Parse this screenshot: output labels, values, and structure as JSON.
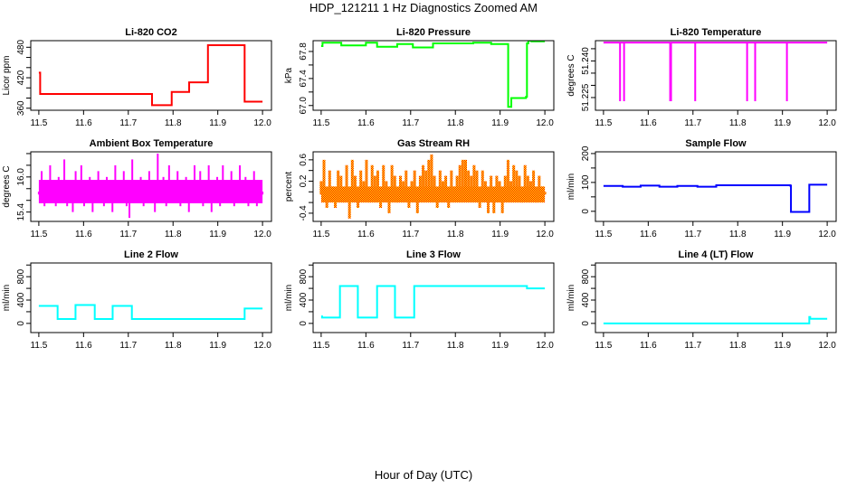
{
  "chart_data": {
    "title": "HDP_121211  1 Hz Diagnostics Zoomed AM",
    "xlabel": "Hour of Day (UTC)",
    "xlim": [
      11.482,
      12.02
    ],
    "xticks": [
      11.5,
      11.6,
      11.7,
      11.8,
      11.9,
      12.0
    ],
    "xtick_labels": [
      "11.5",
      "11.6",
      "11.7",
      "11.8",
      "11.9",
      "12.0"
    ],
    "panels": [
      {
        "title": "Li-820 CO2",
        "ylabel": "Licor ppm",
        "type": "line",
        "ylim": [
          356,
          493
        ],
        "yticks": [
          360,
          380,
          400,
          420,
          440,
          460,
          480
        ],
        "ytick_labels": {
          "360": "360",
          "420": "420",
          "480": "480"
        },
        "color": "#ff0000",
        "steps": [
          [
            11.5,
            430
          ],
          [
            11.503,
            388
          ],
          [
            11.753,
            366
          ],
          [
            11.797,
            392
          ],
          [
            11.836,
            411
          ],
          [
            11.878,
            484
          ],
          [
            11.96,
            373
          ],
          [
            12.0,
            373
          ]
        ]
      },
      {
        "title": "Li-820 Pressure",
        "ylabel": "kPa",
        "type": "line",
        "ylim": [
          66.93,
          67.96
        ],
        "yticks": [
          67.0,
          67.2,
          67.4,
          67.6,
          67.8
        ],
        "ytick_labels": {
          "67": "67.0",
          "67.4": "67.4",
          "67.8": "67.8"
        },
        "color": "#00ff00",
        "steps": [
          [
            11.5,
            67.88
          ],
          [
            11.503,
            67.93
          ],
          [
            11.545,
            67.89
          ],
          [
            11.6,
            67.93
          ],
          [
            11.625,
            67.87
          ],
          [
            11.67,
            67.91
          ],
          [
            11.705,
            67.86
          ],
          [
            11.75,
            67.92
          ],
          [
            11.84,
            67.93
          ],
          [
            11.88,
            67.91
          ],
          [
            11.918,
            66.98
          ],
          [
            11.925,
            67.11
          ],
          [
            11.958,
            67.13
          ],
          [
            11.96,
            67.92
          ],
          [
            11.963,
            67.96
          ],
          [
            11.97,
            67.95
          ],
          [
            12.0,
            67.95
          ]
        ]
      },
      {
        "title": "Li-820 Temperature",
        "ylabel": "degrees C",
        "type": "spikes",
        "ylim": [
          51.2198,
          51.2483
        ],
        "yticks": [
          51.225,
          51.23,
          51.235,
          51.24,
          51.245
        ],
        "ytick_labels": {
          "51.225": "51.225",
          "51.24": "51.240"
        },
        "color": "#ff00ff",
        "baseline": 51.2475,
        "spike_min": 51.2235,
        "spikes": [
          11.537,
          11.546,
          11.649,
          11.651,
          11.705,
          11.821,
          11.839,
          11.91
        ]
      },
      {
        "title": "Ambient Box Temperature",
        "ylabel": "degrees C",
        "type": "noise",
        "ylim": [
          15.24,
          16.43
        ],
        "yticks": [
          15.4,
          15.6,
          15.8,
          16.0,
          16.2,
          16.4
        ],
        "ytick_labels": {
          "15.4": "15.4",
          "16": "16.0"
        },
        "color": "#ff00ff",
        "core_range": [
          15.55,
          15.95
        ],
        "values": [
          15.7,
          16.1,
          15.5,
          15.9,
          16.2,
          15.6,
          15.5,
          16.0,
          15.8,
          16.3,
          15.5,
          15.9,
          15.4,
          16.1,
          15.7,
          16.2,
          15.5,
          15.8,
          16.0,
          15.4,
          15.9,
          16.1,
          15.6,
          15.5,
          16.0,
          15.8,
          15.4,
          16.2,
          15.7,
          15.9,
          16.1,
          15.5,
          15.3,
          16.3,
          15.6,
          15.9,
          16.0,
          15.5,
          15.8,
          16.1,
          15.6,
          15.4,
          16.4,
          15.7,
          16.0,
          15.5,
          16.2,
          15.8,
          15.6,
          16.1,
          15.5,
          15.9,
          16.0,
          15.4,
          15.8,
          16.2,
          15.6,
          16.1,
          15.5,
          15.9,
          16.2,
          15.4,
          15.8,
          16.0,
          15.5,
          16.2,
          15.7,
          15.9,
          16.1,
          15.5,
          15.8,
          16.2,
          15.6,
          16.0,
          15.5,
          15.9,
          16.1,
          15.5,
          15.8,
          15.7
        ]
      },
      {
        "title": "Gas Stream RH",
        "ylabel": "percent",
        "type": "noise",
        "ylim": [
          -0.554,
          0.75
        ],
        "yticks": [
          -0.4,
          -0.2,
          0.0,
          0.2,
          0.4,
          0.6
        ],
        "ytick_labels": {
          "-0.4": "-0.4",
          "0.2": "0.2",
          "0.6": "0.6"
        },
        "color": "#ff8800",
        "color2": "#ffff00",
        "core_range": [
          -0.2,
          0.1
        ],
        "values": [
          0.2,
          0.6,
          -0.3,
          0.4,
          0.1,
          -0.3,
          0.4,
          0.3,
          -0.2,
          0.5,
          -0.5,
          0.6,
          0.3,
          -0.3,
          0.4,
          0.2,
          0.6,
          -0.2,
          0.5,
          0.3,
          0.4,
          -0.3,
          0.5,
          0.2,
          -0.4,
          0.5,
          0.3,
          -0.2,
          0.3,
          0.2,
          0.4,
          -0.3,
          0.2,
          0.4,
          -0.4,
          0.3,
          0.5,
          0.4,
          0.6,
          0.7,
          0.3,
          -0.3,
          0.4,
          0.2,
          0.3,
          -0.3,
          0.4,
          0.1,
          0.3,
          0.5,
          0.6,
          0.6,
          0.4,
          0.3,
          0.5,
          0.4,
          -0.3,
          0.4,
          0.2,
          -0.4,
          0.3,
          -0.4,
          0.3,
          0.2,
          -0.4,
          0.3,
          0.6,
          0.2,
          0.5,
          0.4,
          0.3,
          -0.2,
          0.5,
          0.3,
          0.2,
          0.4,
          -0.2,
          0.3,
          0.1,
          0.0
        ]
      },
      {
        "title": "Sample Flow",
        "ylabel": "ml/min",
        "type": "line",
        "ylim": [
          -35,
          206
        ],
        "yticks": [
          0,
          50,
          100,
          150,
          200
        ],
        "ytick_labels": {
          "0": "0",
          "100": "100",
          "200": "200"
        },
        "color": "#0000ff",
        "steps": [
          [
            11.5,
            88
          ],
          [
            11.543,
            85
          ],
          [
            11.583,
            89
          ],
          [
            11.625,
            85
          ],
          [
            11.665,
            88
          ],
          [
            11.71,
            85
          ],
          [
            11.752,
            90
          ],
          [
            11.918,
            88
          ],
          [
            11.919,
            -2
          ],
          [
            11.96,
            92
          ],
          [
            12.0,
            92
          ]
        ]
      },
      {
        "title": "Line 2 Flow",
        "ylabel": "ml/min",
        "type": "line",
        "ylim": [
          -157,
          1035
        ],
        "yticks": [
          0,
          200,
          400,
          600,
          800,
          1000
        ],
        "ytick_labels": {
          "0": "0",
          "400": "400",
          "800": "800"
        },
        "color": "#00ffff",
        "steps": [
          [
            11.5,
            300
          ],
          [
            11.542,
            75
          ],
          [
            11.582,
            315
          ],
          [
            11.625,
            75
          ],
          [
            11.665,
            300
          ],
          [
            11.708,
            75
          ],
          [
            11.96,
            255
          ],
          [
            12.0,
            255
          ]
        ]
      },
      {
        "title": "Line 3 Flow",
        "ylabel": "ml/min",
        "type": "line",
        "ylim": [
          -157,
          1035
        ],
        "yticks": [
          0,
          200,
          400,
          600,
          800,
          1000
        ],
        "ytick_labels": {
          "0": "0",
          "400": "400",
          "800": "800"
        },
        "color": "#00ffff",
        "steps": [
          [
            11.5,
            120
          ],
          [
            11.502,
            100
          ],
          [
            11.542,
            640
          ],
          [
            11.582,
            100
          ],
          [
            11.625,
            640
          ],
          [
            11.665,
            100
          ],
          [
            11.708,
            640
          ],
          [
            11.96,
            600
          ],
          [
            12.0,
            600
          ]
        ]
      },
      {
        "title": "Line 4 (LT) Flow",
        "ylabel": "ml/min",
        "type": "line",
        "ylim": [
          -157,
          1035
        ],
        "yticks": [
          0,
          200,
          400,
          600,
          800,
          1000
        ],
        "ytick_labels": {
          "0": "0",
          "400": "400",
          "800": "800"
        },
        "color": "#00ffff",
        "steps": [
          [
            11.5,
            0
          ],
          [
            11.96,
            110
          ],
          [
            11.962,
            80
          ],
          [
            12.0,
            80
          ]
        ]
      }
    ]
  }
}
